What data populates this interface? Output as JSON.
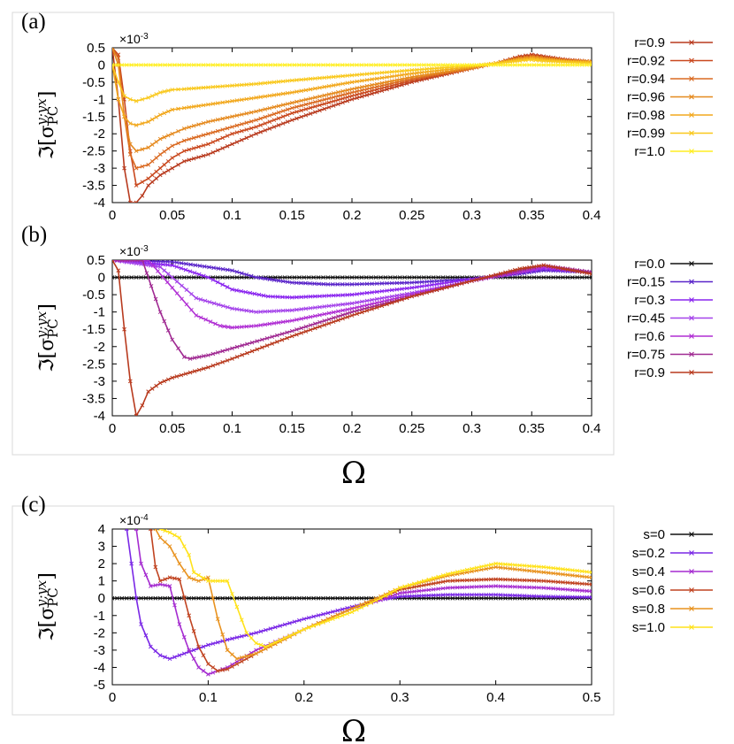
{
  "figure": {
    "x_label": "Ω",
    "y_label": {
      "prefix": "ℑ[σ",
      "sub": "PC",
      "sup": "y;yx",
      "suffix": "]"
    }
  },
  "chart_data": [
    {
      "panel": "(a)",
      "type": "line",
      "scale_label": "×10-3",
      "xlim": [
        0,
        0.4
      ],
      "ylim": [
        -4,
        0.5
      ],
      "xticks": [
        "0",
        "0.05",
        "0.1",
        "0.15",
        "0.2",
        "0.25",
        "0.3",
        "0.35",
        "0.4"
      ],
      "yticks": [
        "0.5",
        "0",
        "-0.5",
        "-1",
        "-1.5",
        "-2",
        "-2.5",
        "-3",
        "-3.5",
        "-4"
      ],
      "ytick_values": [
        0.5,
        0,
        -0.5,
        -1,
        -1.5,
        -2,
        -2.5,
        -3,
        -3.5,
        -4
      ],
      "series": [
        {
          "name": "r=0.9",
          "color": "#b83a1e",
          "x": [
            0.0,
            0.005,
            0.01,
            0.015,
            0.02,
            0.025,
            0.03,
            0.04,
            0.05,
            0.06,
            0.08,
            0.1,
            0.12,
            0.15,
            0.2,
            0.25,
            0.3,
            0.32,
            0.34,
            0.35,
            0.36,
            0.38,
            0.4
          ],
          "y": [
            0.5,
            -1.0,
            -3.0,
            -4.0,
            -4.0,
            -3.8,
            -3.5,
            -3.2,
            -3.0,
            -2.8,
            -2.6,
            -2.3,
            -2.0,
            -1.6,
            -1.0,
            -0.5,
            -0.1,
            0.05,
            0.25,
            0.3,
            0.25,
            0.15,
            0.1
          ]
        },
        {
          "name": "r=0.92",
          "color": "#c9481e",
          "x": [
            0.0,
            0.005,
            0.01,
            0.015,
            0.02,
            0.03,
            0.04,
            0.05,
            0.06,
            0.08,
            0.1,
            0.12,
            0.15,
            0.2,
            0.25,
            0.3,
            0.32,
            0.34,
            0.35,
            0.36,
            0.38,
            0.4
          ],
          "y": [
            0.5,
            0.3,
            -1.0,
            -2.5,
            -3.5,
            -3.3,
            -3.0,
            -2.7,
            -2.5,
            -2.3,
            -2.0,
            -1.8,
            -1.4,
            -0.9,
            -0.45,
            -0.1,
            0.05,
            0.22,
            0.28,
            0.22,
            0.15,
            0.1
          ]
        },
        {
          "name": "r=0.94",
          "color": "#da6a22",
          "x": [
            0.0,
            0.005,
            0.01,
            0.015,
            0.02,
            0.03,
            0.04,
            0.05,
            0.06,
            0.08,
            0.1,
            0.12,
            0.15,
            0.2,
            0.25,
            0.3,
            0.32,
            0.34,
            0.35,
            0.36,
            0.38,
            0.4
          ],
          "y": [
            0.5,
            0.2,
            -1.5,
            -2.6,
            -3.0,
            -2.9,
            -2.6,
            -2.35,
            -2.2,
            -2.0,
            -1.8,
            -1.6,
            -1.25,
            -0.8,
            -0.4,
            -0.1,
            0.05,
            0.2,
            0.25,
            0.2,
            0.12,
            0.1
          ]
        },
        {
          "name": "r=0.96",
          "color": "#e58a1f",
          "x": [
            0.0,
            0.005,
            0.01,
            0.015,
            0.02,
            0.03,
            0.04,
            0.05,
            0.06,
            0.08,
            0.1,
            0.12,
            0.15,
            0.2,
            0.25,
            0.3,
            0.32,
            0.34,
            0.35,
            0.36,
            0.38,
            0.4
          ],
          "y": [
            0.5,
            0.0,
            -1.5,
            -2.3,
            -2.5,
            -2.4,
            -2.15,
            -2.0,
            -1.85,
            -1.65,
            -1.5,
            -1.35,
            -1.1,
            -0.7,
            -0.35,
            -0.08,
            0.05,
            0.2,
            0.22,
            0.2,
            0.12,
            0.1
          ]
        },
        {
          "name": "r=0.98",
          "color": "#f2a81d",
          "x": [
            0.0,
            0.005,
            0.01,
            0.015,
            0.02,
            0.03,
            0.04,
            0.05,
            0.06,
            0.08,
            0.1,
            0.12,
            0.15,
            0.2,
            0.25,
            0.3,
            0.32,
            0.34,
            0.35,
            0.36,
            0.38,
            0.4
          ],
          "y": [
            0.0,
            -1.0,
            -1.5,
            -1.7,
            -1.75,
            -1.65,
            -1.45,
            -1.3,
            -1.25,
            -1.15,
            -1.05,
            -0.95,
            -0.8,
            -0.5,
            -0.25,
            -0.05,
            0.05,
            0.15,
            0.2,
            0.15,
            0.1,
            0.08
          ]
        },
        {
          "name": "r=0.99",
          "color": "#f9c81c",
          "x": [
            0.0,
            0.005,
            0.01,
            0.015,
            0.02,
            0.03,
            0.04,
            0.05,
            0.06,
            0.08,
            0.1,
            0.12,
            0.15,
            0.2,
            0.25,
            0.3,
            0.32,
            0.34,
            0.35,
            0.36,
            0.38,
            0.4
          ],
          "y": [
            0.0,
            -0.5,
            -0.9,
            -1.0,
            -1.05,
            -0.95,
            -0.8,
            -0.72,
            -0.7,
            -0.65,
            -0.6,
            -0.55,
            -0.45,
            -0.3,
            -0.15,
            -0.02,
            0.05,
            0.12,
            0.15,
            0.12,
            0.08,
            0.05
          ]
        },
        {
          "name": "r=1.0",
          "color": "#ffee22",
          "x": [
            0.0,
            0.4
          ],
          "y": [
            0.0,
            0.0
          ]
        }
      ]
    },
    {
      "panel": "(b)",
      "type": "line",
      "scale_label": "×10-3",
      "xlim": [
        0,
        0.4
      ],
      "ylim": [
        -4,
        0.5
      ],
      "xticks": [
        "0",
        "0.05",
        "0.1",
        "0.15",
        "0.2",
        "0.25",
        "0.3",
        "0.35",
        "0.4"
      ],
      "yticks": [
        "0.5",
        "0",
        "-0.5",
        "-1",
        "-1.5",
        "-2",
        "-2.5",
        "-3",
        "-3.5",
        "-4"
      ],
      "ytick_values": [
        0.5,
        0,
        -0.5,
        -1,
        -1.5,
        -2,
        -2.5,
        -3,
        -3.5,
        -4
      ],
      "series": [
        {
          "name": "r=0.0",
          "color": "#111111",
          "x": [
            0.0,
            0.4
          ],
          "y": [
            0.0,
            0.0
          ]
        },
        {
          "name": "r=0.15",
          "color": "#5a25c9",
          "x": [
            0.0,
            0.05,
            0.1,
            0.12,
            0.15,
            0.18,
            0.2,
            0.25,
            0.3,
            0.34,
            0.36,
            0.4
          ],
          "y": [
            0.5,
            0.45,
            0.2,
            0.0,
            -0.15,
            -0.2,
            -0.2,
            -0.15,
            -0.05,
            0.1,
            0.2,
            0.15
          ]
        },
        {
          "name": "r=0.3",
          "color": "#8a25ef",
          "x": [
            0.0,
            0.05,
            0.08,
            0.1,
            0.13,
            0.15,
            0.2,
            0.25,
            0.3,
            0.34,
            0.36,
            0.4
          ],
          "y": [
            0.5,
            0.35,
            0.0,
            -0.35,
            -0.55,
            -0.58,
            -0.5,
            -0.3,
            -0.05,
            0.15,
            0.25,
            0.15
          ]
        },
        {
          "name": "r=0.45",
          "color": "#a443ea",
          "x": [
            0.0,
            0.04,
            0.05,
            0.07,
            0.1,
            0.12,
            0.15,
            0.2,
            0.25,
            0.3,
            0.34,
            0.36,
            0.4
          ],
          "y": [
            0.5,
            0.3,
            0.0,
            -0.6,
            -0.9,
            -1.0,
            -0.95,
            -0.75,
            -0.45,
            -0.1,
            0.15,
            0.3,
            0.15
          ]
        },
        {
          "name": "r=0.6",
          "color": "#b02fd4",
          "x": [
            0.0,
            0.03,
            0.05,
            0.07,
            0.09,
            0.1,
            0.12,
            0.15,
            0.2,
            0.25,
            0.3,
            0.34,
            0.36,
            0.4
          ],
          "y": [
            0.5,
            0.5,
            -0.3,
            -1.1,
            -1.4,
            -1.45,
            -1.4,
            -1.25,
            -0.9,
            -0.5,
            -0.1,
            0.15,
            0.3,
            0.15
          ]
        },
        {
          "name": "r=0.75",
          "color": "#a02a92",
          "x": [
            0.0,
            0.025,
            0.04,
            0.05,
            0.06,
            0.065,
            0.08,
            0.1,
            0.15,
            0.2,
            0.25,
            0.3,
            0.34,
            0.36,
            0.4
          ],
          "y": [
            0.5,
            0.5,
            -1.0,
            -1.8,
            -2.3,
            -2.35,
            -2.25,
            -2.05,
            -1.55,
            -1.0,
            -0.55,
            -0.1,
            0.2,
            0.35,
            0.15
          ]
        },
        {
          "name": "r=0.9",
          "color": "#b83a1e",
          "x": [
            0.0,
            0.005,
            0.01,
            0.015,
            0.02,
            0.025,
            0.03,
            0.04,
            0.05,
            0.08,
            0.1,
            0.15,
            0.2,
            0.25,
            0.3,
            0.34,
            0.36,
            0.4
          ],
          "y": [
            0.5,
            0.2,
            -1.5,
            -3.0,
            -4.0,
            -3.7,
            -3.3,
            -3.05,
            -2.9,
            -2.6,
            -2.35,
            -1.7,
            -1.1,
            -0.55,
            -0.1,
            0.25,
            0.35,
            0.1
          ]
        }
      ]
    },
    {
      "panel": "(c)",
      "type": "line",
      "scale_label": "×10-4",
      "xlim": [
        0,
        0.5
      ],
      "ylim": [
        -5,
        4
      ],
      "xticks": [
        "0",
        "0.1",
        "0.2",
        "0.3",
        "0.4",
        "0.5"
      ],
      "yticks": [
        "4",
        "3",
        "2",
        "1",
        "0",
        "-1",
        "-2",
        "-3",
        "-4",
        "-5"
      ],
      "ytick_values": [
        4,
        3,
        2,
        1,
        0,
        -1,
        -2,
        -3,
        -4,
        -5
      ],
      "series": [
        {
          "name": "s=0",
          "color": "#111111",
          "x": [
            0.0,
            0.5
          ],
          "y": [
            0.0,
            0.0
          ]
        },
        {
          "name": "s=0.2",
          "color": "#7a28e6",
          "x": [
            0.015,
            0.02,
            0.025,
            0.03,
            0.04,
            0.05,
            0.06,
            0.08,
            0.1,
            0.12,
            0.15,
            0.2,
            0.25,
            0.28,
            0.3,
            0.35,
            0.4,
            0.45,
            0.5
          ],
          "y": [
            4.0,
            2.0,
            0.0,
            -1.5,
            -2.8,
            -3.3,
            -3.5,
            -3.1,
            -2.7,
            -2.4,
            -2.0,
            -1.2,
            -0.5,
            -0.1,
            0.1,
            0.2,
            0.2,
            0.1,
            0.05
          ]
        },
        {
          "name": "s=0.4",
          "color": "#a52cd0",
          "x": [
            0.025,
            0.03,
            0.04,
            0.05,
            0.06,
            0.07,
            0.08,
            0.09,
            0.1,
            0.12,
            0.15,
            0.2,
            0.25,
            0.28,
            0.3,
            0.35,
            0.4,
            0.45,
            0.5
          ],
          "y": [
            4.0,
            2.0,
            0.7,
            0.8,
            0.7,
            -1.5,
            -3.0,
            -4.0,
            -4.4,
            -4.0,
            -3.0,
            -1.8,
            -0.6,
            -0.1,
            0.3,
            0.6,
            0.7,
            0.6,
            0.4
          ]
        },
        {
          "name": "s=0.6",
          "color": "#c04320",
          "x": [
            0.04,
            0.045,
            0.05,
            0.06,
            0.07,
            0.08,
            0.09,
            0.1,
            0.11,
            0.12,
            0.15,
            0.2,
            0.25,
            0.28,
            0.3,
            0.35,
            0.4,
            0.45,
            0.5
          ],
          "y": [
            4.0,
            1.8,
            1.0,
            1.2,
            1.1,
            -1.0,
            -2.8,
            -3.8,
            -4.2,
            -4.1,
            -3.2,
            -1.8,
            -0.6,
            0.0,
            0.5,
            1.0,
            1.1,
            1.0,
            0.8
          ]
        },
        {
          "name": "s=0.8",
          "color": "#e8921f",
          "x": [
            0.045,
            0.05,
            0.06,
            0.07,
            0.08,
            0.09,
            0.1,
            0.11,
            0.12,
            0.13,
            0.15,
            0.2,
            0.25,
            0.28,
            0.3,
            0.35,
            0.4,
            0.45,
            0.5
          ],
          "y": [
            4.0,
            3.5,
            3.0,
            2.0,
            1.2,
            1.0,
            1.2,
            -1.2,
            -3.0,
            -3.5,
            -3.2,
            -1.8,
            -0.6,
            0.1,
            0.6,
            1.3,
            1.8,
            1.5,
            1.2
          ]
        },
        {
          "name": "s=1.0",
          "color": "#ffe21a",
          "x": [
            0.05,
            0.06,
            0.07,
            0.08,
            0.085,
            0.1,
            0.12,
            0.13,
            0.14,
            0.15,
            0.16,
            0.2,
            0.25,
            0.28,
            0.3,
            0.35,
            0.4,
            0.45,
            0.5
          ],
          "y": [
            4.0,
            3.8,
            3.5,
            2.5,
            1.5,
            1.0,
            1.0,
            -0.5,
            -2.0,
            -2.6,
            -2.8,
            -1.8,
            -0.8,
            0.0,
            0.6,
            1.4,
            2.0,
            1.8,
            1.5
          ]
        }
      ]
    }
  ]
}
